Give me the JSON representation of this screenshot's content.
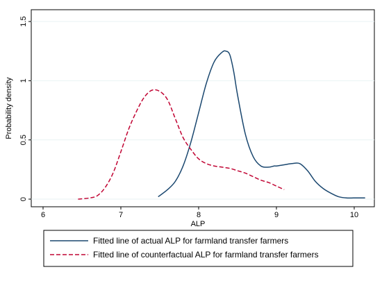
{
  "chart_data": {
    "type": "line",
    "title": "",
    "xlabel": "ALP",
    "ylabel": "Probability density",
    "xlim": [
      6,
      10.2
    ],
    "ylim": [
      0,
      1.5
    ],
    "x_ticks": [
      6,
      7,
      8,
      9,
      10
    ],
    "y_ticks": [
      0,
      0.5,
      1,
      1.5
    ],
    "grid": "horizontal",
    "legend_position": "bottom",
    "series": [
      {
        "name": "Fitted line of actual ALP for farmland transfer farmers",
        "color": "#1a476f",
        "style": "solid",
        "x": [
          7.48,
          7.6,
          7.7,
          7.8,
          7.9,
          8.0,
          8.1,
          8.2,
          8.3,
          8.35,
          8.4,
          8.45,
          8.5,
          8.6,
          8.7,
          8.8,
          8.9,
          8.97,
          9.0,
          9.1,
          9.2,
          9.3,
          9.4,
          9.5,
          9.6,
          9.7,
          9.8,
          9.9,
          10.0,
          10.14
        ],
        "y": [
          0.02,
          0.08,
          0.15,
          0.28,
          0.48,
          0.73,
          0.98,
          1.16,
          1.24,
          1.25,
          1.22,
          1.08,
          0.88,
          0.55,
          0.36,
          0.28,
          0.27,
          0.28,
          0.28,
          0.29,
          0.3,
          0.3,
          0.24,
          0.15,
          0.09,
          0.05,
          0.02,
          0.01,
          0.01,
          0.01
        ]
      },
      {
        "name": "Fitted line of counterfactual ALP for farmland transfer farmers",
        "color": "#c10534",
        "style": "dashed",
        "x": [
          6.45,
          6.6,
          6.7,
          6.8,
          6.9,
          7.0,
          7.1,
          7.2,
          7.3,
          7.4,
          7.5,
          7.6,
          7.7,
          7.8,
          7.9,
          8.0,
          8.1,
          8.2,
          8.3,
          8.4,
          8.5,
          8.6,
          8.7,
          8.8,
          8.9,
          9.0,
          9.1
        ],
        "y": [
          0.0,
          0.01,
          0.03,
          0.1,
          0.22,
          0.4,
          0.59,
          0.74,
          0.86,
          0.92,
          0.91,
          0.84,
          0.68,
          0.52,
          0.42,
          0.34,
          0.3,
          0.28,
          0.27,
          0.26,
          0.24,
          0.22,
          0.19,
          0.16,
          0.14,
          0.11,
          0.08
        ]
      }
    ]
  }
}
